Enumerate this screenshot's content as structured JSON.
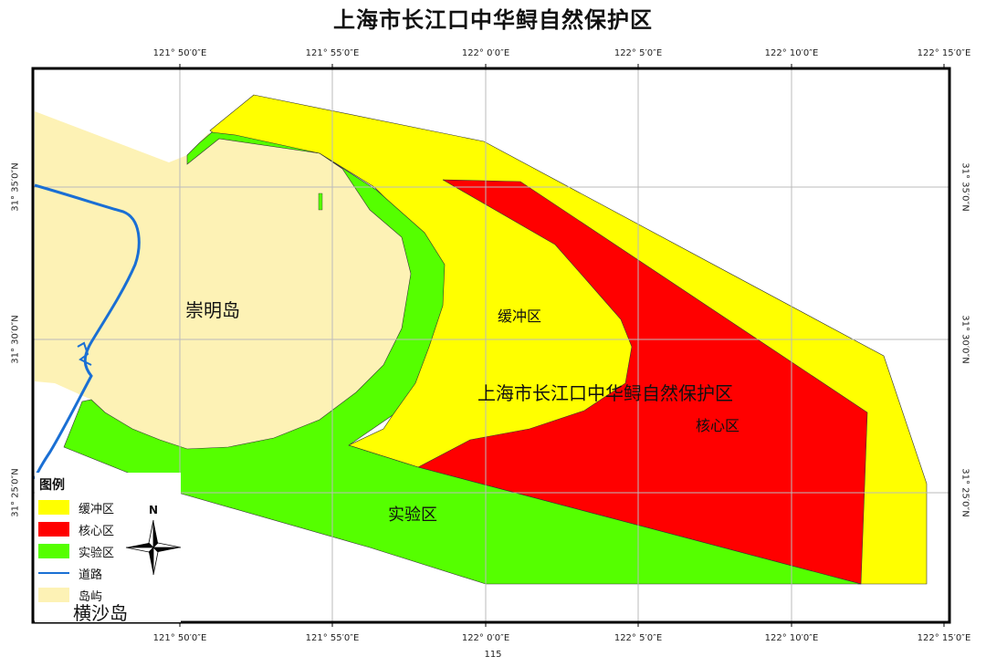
{
  "map": {
    "title": "上海市长江口中华鲟自然保护区",
    "page_number": "115",
    "colors": {
      "buffer": "#ffff00",
      "core": "#ff0000",
      "experiment": "#55ff00",
      "road": "#1a6fd4",
      "island": "#fdf2b5",
      "grid": "#bbbbbb",
      "frame": "#000000"
    },
    "longitude_ticks": [
      "121° 50′0″E",
      "121° 55′0″E",
      "122° 0′0″E",
      "122° 5′0″E",
      "122° 10′0″E",
      "122° 15′0″E"
    ],
    "latitude_ticks": [
      "31° 35′0″N",
      "31° 30′0″N",
      "31° 25′0″N"
    ],
    "labels": {
      "chongming": "崇明岛",
      "buffer_zone": "缓冲区",
      "reserve": "上海市长江口中华鲟自然保护区",
      "core_zone": "核心区",
      "experiment_zone": "实验区",
      "hengsha": "横沙岛"
    },
    "north_arrow": {
      "label": "N",
      "icon": "north-arrow-icon"
    },
    "legend": {
      "title": "图例",
      "items": [
        {
          "label": "缓冲区",
          "kind": "swatch",
          "color": "#ffff00"
        },
        {
          "label": "核心区",
          "kind": "swatch",
          "color": "#ff0000"
        },
        {
          "label": "实验区",
          "kind": "swatch",
          "color": "#55ff00"
        },
        {
          "label": "道路",
          "kind": "line",
          "color": "#1a6fd4"
        },
        {
          "label": "岛屿",
          "kind": "swatch",
          "color": "#fdf2b5"
        }
      ]
    }
  }
}
